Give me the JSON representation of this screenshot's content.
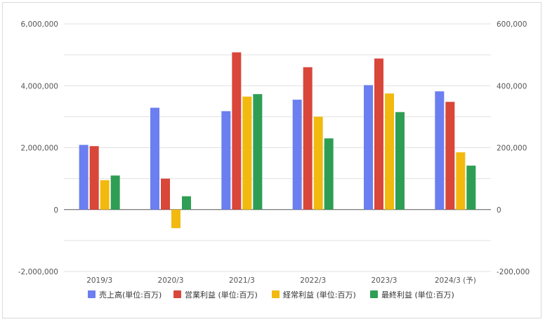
{
  "chart_data": {
    "type": "bar",
    "categories": [
      "2019/3",
      "2020/3",
      "2021/3",
      "2022/3",
      "2023/3",
      "2024/3 (予)"
    ],
    "series": [
      {
        "name": "売上高(単位:百万)",
        "axis": "left",
        "color": "#6b7ff0",
        "values": [
          2090000,
          3290000,
          3180000,
          3550000,
          4020000,
          3820000
        ]
      },
      {
        "name": "営業利益 (単位:百万)",
        "axis": "right",
        "color": "#d9463a",
        "values": [
          205000,
          100000,
          508000,
          460000,
          488000,
          348000
        ]
      },
      {
        "name": "経常利益 (単位:百万)",
        "axis": "right",
        "color": "#f2b90f",
        "values": [
          95000,
          -60000,
          365000,
          300000,
          375000,
          185000
        ]
      },
      {
        "name": "最終利益 (単位:百万)",
        "axis": "right",
        "color": "#2f9e55",
        "values": [
          110000,
          43000,
          373000,
          230000,
          315000,
          142000
        ]
      }
    ],
    "left_axis": {
      "ylim": [
        -2000000,
        6000000
      ],
      "ticks": [
        -2000000,
        0,
        2000000,
        4000000,
        6000000
      ],
      "tick_labels": [
        "-2,000,000",
        "0",
        "2,000,000",
        "4,000,000",
        "6,000,000"
      ]
    },
    "right_axis": {
      "ylim": [
        -200000,
        600000
      ],
      "ticks": [
        -200000,
        0,
        200000,
        400000,
        600000
      ],
      "tick_labels": [
        "-200,000",
        "0",
        "200,000",
        "400,000",
        "600,000"
      ]
    },
    "grid": true,
    "legend_position": "bottom",
    "title": "",
    "xlabel": "",
    "ylabel": ""
  }
}
